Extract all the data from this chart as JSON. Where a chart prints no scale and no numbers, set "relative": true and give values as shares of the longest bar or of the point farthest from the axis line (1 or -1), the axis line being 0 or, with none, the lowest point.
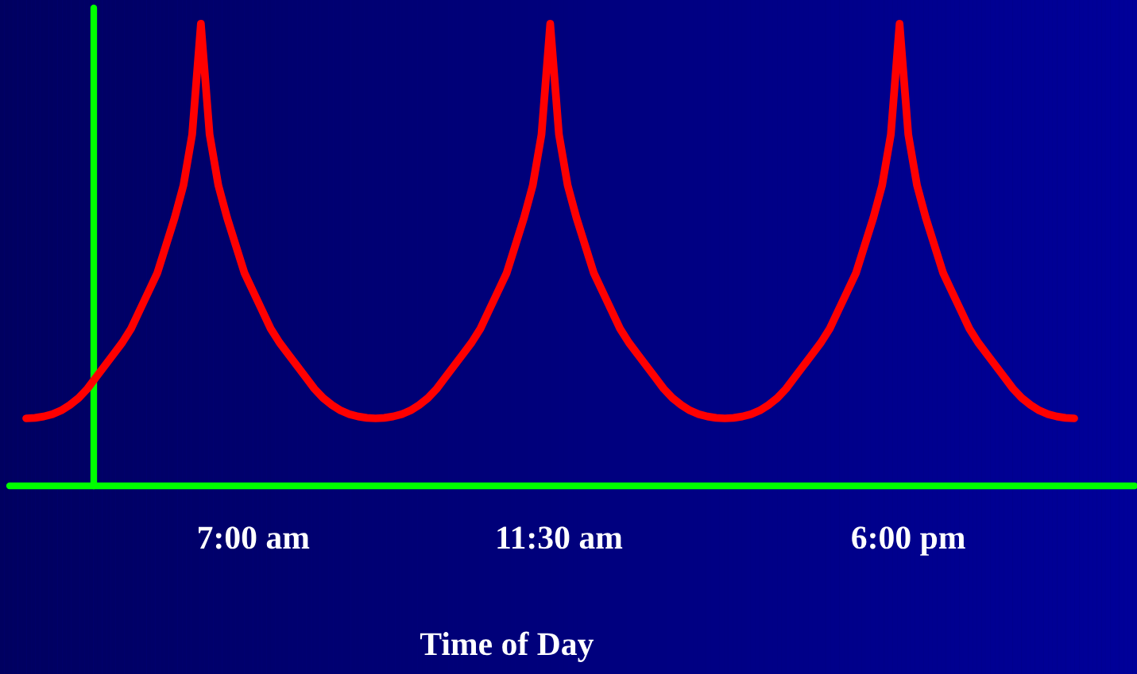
{
  "chart_data": {
    "type": "line",
    "relative": true,
    "xlabel": "Time of Day",
    "categories": [
      null,
      null,
      null,
      null,
      null,
      null,
      null,
      null,
      null,
      null,
      null,
      null,
      null,
      null,
      null,
      null,
      null,
      null,
      null,
      null,
      null,
      null,
      null,
      null,
      null,
      null,
      "7:00 am",
      null,
      null,
      null,
      null,
      null,
      null,
      null,
      null,
      null,
      null,
      null,
      null,
      null,
      null,
      null,
      null,
      null,
      null,
      null,
      null,
      null,
      null,
      null,
      null,
      null,
      null,
      null,
      null,
      null,
      null,
      null,
      null,
      null,
      null,
      "11:30 am",
      null,
      null,
      null,
      null,
      null,
      null,
      null,
      null,
      null,
      null,
      null,
      null,
      null,
      null,
      null,
      null,
      null,
      null,
      null,
      null,
      null,
      null,
      null,
      null,
      null,
      null,
      null,
      null,
      null,
      null,
      null,
      null,
      null,
      null,
      null,
      null,
      null,
      null,
      null,
      "6:00 pm",
      null,
      null,
      null,
      null,
      null,
      null,
      null,
      null,
      null,
      null,
      null,
      null,
      null,
      null,
      null,
      null,
      null,
      null,
      null
    ],
    "series": [
      {
        "color": "#ff0000",
        "values": [
          0.146,
          0.147,
          0.15,
          0.155,
          0.163,
          0.175,
          0.19,
          0.21,
          0.235,
          0.26,
          0.285,
          0.31,
          0.34,
          0.38,
          0.42,
          0.46,
          0.52,
          0.58,
          0.65,
          0.76,
          1.0,
          0.76,
          0.65,
          0.58,
          0.52,
          0.46,
          0.42,
          0.38,
          0.34,
          0.31,
          0.285,
          0.26,
          0.235,
          0.21,
          0.19,
          0.175,
          0.163,
          0.155,
          0.15,
          0.147,
          0.146,
          0.147,
          0.15,
          0.155,
          0.163,
          0.175,
          0.19,
          0.21,
          0.235,
          0.26,
          0.285,
          0.31,
          0.34,
          0.38,
          0.42,
          0.46,
          0.52,
          0.58,
          0.65,
          0.76,
          1.0,
          0.76,
          0.65,
          0.58,
          0.52,
          0.46,
          0.42,
          0.38,
          0.34,
          0.31,
          0.285,
          0.26,
          0.235,
          0.21,
          0.19,
          0.175,
          0.163,
          0.155,
          0.15,
          0.147,
          0.146,
          0.147,
          0.15,
          0.155,
          0.163,
          0.175,
          0.19,
          0.21,
          0.235,
          0.26,
          0.285,
          0.31,
          0.34,
          0.38,
          0.42,
          0.46,
          0.52,
          0.58,
          0.65,
          0.76,
          1.0,
          0.76,
          0.65,
          0.58,
          0.52,
          0.46,
          0.42,
          0.38,
          0.34,
          0.31,
          0.285,
          0.26,
          0.235,
          0.21,
          0.19,
          0.175,
          0.163,
          0.155,
          0.15,
          0.147,
          0.146
        ]
      }
    ],
    "grid": false,
    "legend": false,
    "line_style": "solid",
    "marker": "none"
  }
}
